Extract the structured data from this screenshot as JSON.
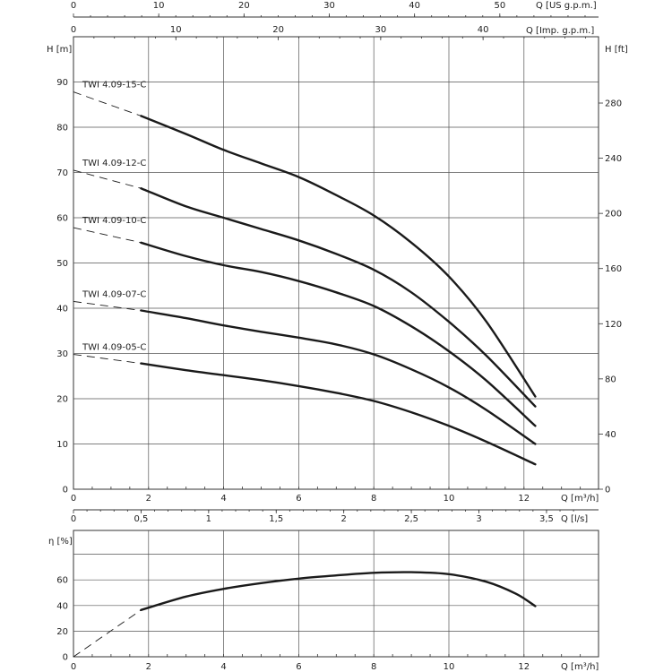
{
  "chart_data": [
    {
      "type": "line",
      "x_unit": "Q [m³/h]",
      "xlim": [
        0,
        14
      ],
      "y_unit": "H [m]",
      "ylim": [
        0,
        100
      ],
      "y_ticks": [
        0,
        10,
        20,
        30,
        40,
        50,
        60,
        70,
        80,
        90
      ],
      "x_ticks": [
        0,
        2,
        4,
        6,
        8,
        10,
        12
      ],
      "y2_unit": "H [ft]",
      "y2_ticks": [
        0,
        40,
        80,
        120,
        160,
        200,
        240,
        280
      ],
      "top_axis_us": {
        "unit": "Q [US g.p.m.]",
        "ticks": [
          0,
          10,
          20,
          30,
          40,
          50
        ],
        "per_m3h": 4.4029
      },
      "top_axis_imp": {
        "unit": "Q [Imp. g.p.m.]",
        "ticks": [
          0,
          10,
          20,
          30,
          40
        ],
        "per_m3h": 3.6662
      },
      "grid": true,
      "series": [
        {
          "name": "TWI 4.09-15-C",
          "x": [
            1.8,
            3,
            4,
            5,
            6,
            7,
            8,
            9,
            10,
            11,
            12.3
          ],
          "values": [
            82.5,
            78.5,
            75,
            72,
            69,
            65,
            60.5,
            54.5,
            47,
            37,
            20.5
          ],
          "dashed": {
            "x": [
              0,
              1.8
            ],
            "values": [
              87.8,
              82.5
            ]
          }
        },
        {
          "name": "TWI 4.09-12-C",
          "x": [
            1.8,
            3,
            4,
            5,
            6,
            7,
            8,
            9,
            10,
            11,
            12.3
          ],
          "values": [
            66.5,
            62.5,
            60,
            57.5,
            55,
            52,
            48.5,
            43.5,
            37,
            29.5,
            18.3
          ],
          "dashed": {
            "x": [
              0,
              1.8
            ],
            "values": [
              70.5,
              66.5
            ]
          }
        },
        {
          "name": "TWI 4.09-10-C",
          "x": [
            1.8,
            3,
            4,
            5,
            6,
            7,
            8,
            9,
            10,
            11,
            12.3
          ],
          "values": [
            54.5,
            51.5,
            49.5,
            48,
            46,
            43.5,
            40.5,
            36,
            30.5,
            24,
            14
          ],
          "dashed": {
            "x": [
              0,
              1.8
            ],
            "values": [
              57.8,
              54.5
            ]
          }
        },
        {
          "name": "TWI 4.09-07-C",
          "x": [
            1.8,
            3,
            4,
            5,
            6,
            7,
            8,
            9,
            10,
            11,
            12.3
          ],
          "values": [
            39.5,
            37.8,
            36.2,
            34.8,
            33.5,
            32,
            29.8,
            26.5,
            22.5,
            17.5,
            10
          ],
          "dashed": {
            "x": [
              0,
              1.8
            ],
            "values": [
              41.5,
              39.5
            ]
          }
        },
        {
          "name": "TWI 4.09-05-C",
          "x": [
            1.8,
            3,
            4,
            5,
            6,
            7,
            8,
            9,
            10,
            11,
            12.3
          ],
          "values": [
            27.8,
            26.3,
            25.2,
            24.1,
            22.8,
            21.3,
            19.5,
            17,
            14,
            10.5,
            5.5
          ],
          "dashed": {
            "x": [
              0,
              1.8
            ],
            "values": [
              29.8,
              27.8
            ]
          }
        }
      ],
      "bottom_axis_ls": {
        "unit": "Q [l/s]",
        "ticks": [
          "0",
          "0,5",
          "1",
          "1,5",
          "2",
          "2,5",
          "3",
          "3,5"
        ],
        "values": [
          0,
          0.5,
          1,
          1.5,
          2,
          2.5,
          3,
          3.5
        ],
        "m3h_per_ls": 3.6
      }
    },
    {
      "type": "line",
      "x_unit": "Q [m³/h]",
      "xlim": [
        0,
        14
      ],
      "x_ticks": [
        0,
        2,
        4,
        6,
        8,
        10,
        12
      ],
      "y_unit": "η [%]",
      "ylim": [
        0,
        80
      ],
      "y_ticks": [
        0,
        20,
        40,
        60
      ],
      "grid": true,
      "series": [
        {
          "name": "",
          "x": [
            1.8,
            3,
            4,
            5,
            6,
            7,
            8,
            9,
            10,
            11,
            11.8,
            12.3
          ],
          "values": [
            36.5,
            47,
            53,
            57.5,
            61,
            63.5,
            65.5,
            66,
            64.5,
            58.5,
            49,
            39.5
          ],
          "dashed": {
            "x": [
              0,
              1.8
            ],
            "values": [
              0,
              36.5
            ]
          }
        }
      ]
    }
  ]
}
